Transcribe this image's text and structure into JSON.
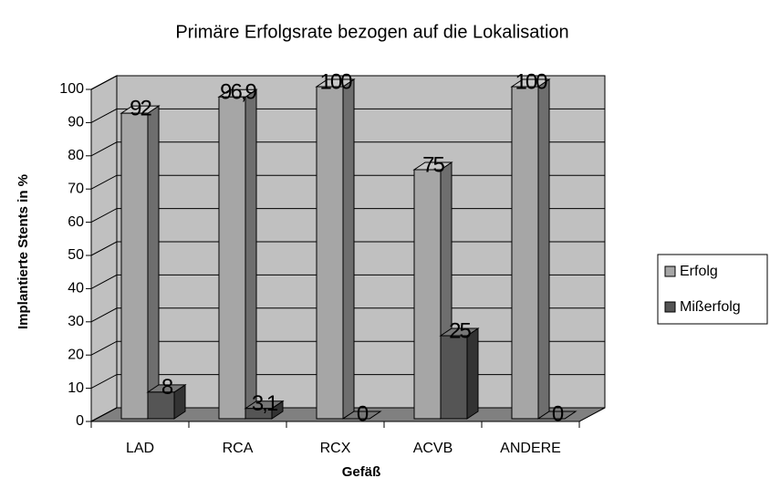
{
  "chart_data": {
    "type": "bar3d",
    "title": "Primäre Erfolgsrate bezogen auf die Lokalisation",
    "x_label": "Gefäß",
    "y_label": "Implantierte Stents in %",
    "categories": [
      "LAD",
      "RCA",
      "RCX",
      "ACVB",
      "ANDERE"
    ],
    "series": [
      {
        "name": "Erfolg",
        "color": "#a6a6a6",
        "values": [
          92,
          96.9,
          100,
          75,
          100
        ],
        "value_labels": [
          "92",
          "96,9",
          "100",
          "75",
          "100"
        ]
      },
      {
        "name": "Mißerfolg",
        "color": "#555555",
        "values": [
          8,
          3.1,
          0,
          25,
          0
        ],
        "value_labels": [
          "8",
          "3,1",
          "0",
          "25",
          "0"
        ]
      }
    ],
    "ylim": [
      0,
      100
    ],
    "yticks": [
      0,
      10,
      20,
      30,
      40,
      50,
      60,
      70,
      80,
      90,
      100
    ],
    "grid": true,
    "legend": "right"
  }
}
